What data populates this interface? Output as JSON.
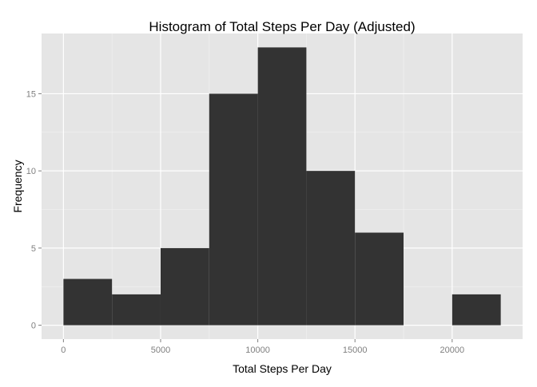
{
  "chart_data": {
    "type": "bar",
    "title": "Histogram of Total Steps Per Day (Adjusted)",
    "xlabel": "Total Steps Per Day",
    "ylabel": "Frequency",
    "bin_width": 2500,
    "bins": [
      {
        "start": 0,
        "end": 2500,
        "count": 3
      },
      {
        "start": 2500,
        "end": 5000,
        "count": 2
      },
      {
        "start": 5000,
        "end": 7500,
        "count": 5
      },
      {
        "start": 7500,
        "end": 10000,
        "count": 15
      },
      {
        "start": 10000,
        "end": 12500,
        "count": 18
      },
      {
        "start": 12500,
        "end": 15000,
        "count": 10
      },
      {
        "start": 15000,
        "end": 17500,
        "count": 6
      },
      {
        "start": 17500,
        "end": 20000,
        "count": 0
      },
      {
        "start": 20000,
        "end": 22500,
        "count": 2
      }
    ],
    "xlim": [
      -1125,
      23625
    ],
    "ylim": [
      -0.9,
      18.9
    ],
    "x_ticks": [
      0,
      5000,
      10000,
      15000,
      20000
    ],
    "x_tick_labels": [
      "0",
      "5000",
      "10000",
      "15000",
      "20000"
    ],
    "y_ticks": [
      0,
      5,
      10,
      15
    ],
    "y_tick_labels": [
      "0",
      "5",
      "10",
      "15"
    ],
    "grid": true,
    "colors": {
      "bar": "#333333",
      "panel_background": "#e5e5e5",
      "grid_major": "#ffffff",
      "grid_minor": "#f2f2f2",
      "tick_mark": "#7f7f7f",
      "tick_label": "#7f7f7f"
    }
  }
}
